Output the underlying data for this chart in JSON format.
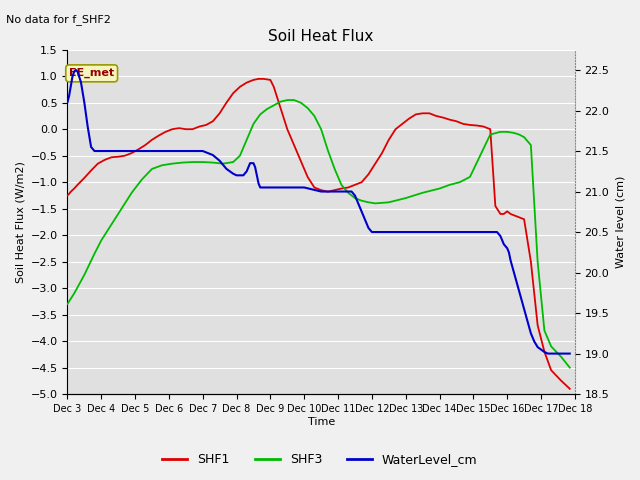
{
  "title": "Soil Heat Flux",
  "note": "No data for f_SHF2",
  "ylabel_left": "Soil Heat Flux (W/m2)",
  "ylabel_right": "Water level (cm)",
  "xlabel": "Time",
  "ylim_left": [
    -5.0,
    1.5
  ],
  "ylim_right": [
    18.5,
    22.75
  ],
  "background_color": "#e0e0e0",
  "grid_color": "#ffffff",
  "ee_met_label": "EE_met",
  "legend_items": [
    "SHF1",
    "SHF3",
    "WaterLevel_cm"
  ],
  "shf1_color": "#dd0000",
  "shf3_color": "#00bb00",
  "water_color": "#0000cc",
  "xtick_labels": [
    "Dec 3",
    "Dec 4",
    "Dec 5",
    "Dec 6",
    "Dec 7",
    "Dec 8",
    "Dec 9",
    "Dec 10",
    "Dec 11",
    "Dec 12",
    "Dec 13",
    "Dec 14",
    "Dec 15",
    "Dec 16",
    "Dec 17",
    "Dec 18"
  ],
  "shf1_x": [
    3.0,
    3.05,
    3.1,
    3.2,
    3.3,
    3.5,
    3.7,
    3.9,
    4.1,
    4.3,
    4.5,
    4.7,
    4.9,
    5.1,
    5.3,
    5.5,
    5.7,
    5.9,
    6.1,
    6.3,
    6.5,
    6.7,
    6.9,
    7.1,
    7.3,
    7.5,
    7.7,
    7.9,
    8.1,
    8.3,
    8.5,
    8.65,
    8.8,
    9.0,
    9.1,
    9.2,
    9.35,
    9.5,
    9.7,
    9.9,
    10.1,
    10.3,
    10.5,
    10.7,
    10.9,
    11.1,
    11.3,
    11.5,
    11.7,
    11.9,
    12.1,
    12.3,
    12.5,
    12.7,
    12.9,
    13.1,
    13.3,
    13.5,
    13.7,
    13.9,
    14.1,
    14.3,
    14.5,
    14.7,
    14.9,
    15.1,
    15.3,
    15.5,
    15.65,
    15.8,
    15.9,
    16.0,
    16.1,
    16.3,
    16.5,
    16.7,
    16.9,
    17.1,
    17.3,
    17.6,
    17.85
  ],
  "shf1_y": [
    -1.25,
    -1.22,
    -1.18,
    -1.12,
    -1.05,
    -0.92,
    -0.78,
    -0.65,
    -0.58,
    -0.53,
    -0.52,
    -0.5,
    -0.45,
    -0.38,
    -0.3,
    -0.2,
    -0.12,
    -0.05,
    0.0,
    0.02,
    0.0,
    0.0,
    0.05,
    0.08,
    0.15,
    0.3,
    0.5,
    0.68,
    0.8,
    0.88,
    0.93,
    0.95,
    0.95,
    0.93,
    0.8,
    0.6,
    0.3,
    0.0,
    -0.3,
    -0.6,
    -0.9,
    -1.1,
    -1.15,
    -1.18,
    -1.15,
    -1.12,
    -1.1,
    -1.05,
    -1.0,
    -0.85,
    -0.65,
    -0.45,
    -0.2,
    0.0,
    0.1,
    0.2,
    0.28,
    0.3,
    0.3,
    0.25,
    0.22,
    0.18,
    0.15,
    0.1,
    0.08,
    0.07,
    0.05,
    0.0,
    -1.45,
    -1.6,
    -1.6,
    -1.55,
    -1.6,
    -1.65,
    -1.7,
    -2.5,
    -3.7,
    -4.2,
    -4.55,
    -4.75,
    -4.9
  ],
  "shf3_x": [
    3.0,
    3.2,
    3.5,
    3.8,
    4.0,
    4.3,
    4.6,
    4.9,
    5.2,
    5.5,
    5.8,
    6.1,
    6.4,
    6.7,
    7.0,
    7.3,
    7.6,
    7.9,
    8.1,
    8.3,
    8.5,
    8.7,
    8.9,
    9.1,
    9.3,
    9.5,
    9.7,
    9.9,
    10.1,
    10.3,
    10.5,
    10.7,
    10.9,
    11.1,
    11.3,
    11.5,
    11.7,
    11.9,
    12.1,
    12.5,
    13.0,
    13.5,
    14.0,
    14.3,
    14.6,
    14.9,
    15.2,
    15.5,
    15.8,
    16.0,
    16.2,
    16.35,
    16.5,
    16.7,
    16.9,
    17.1,
    17.3,
    17.6,
    17.85
  ],
  "shf3_y": [
    -3.3,
    -3.1,
    -2.75,
    -2.35,
    -2.1,
    -1.8,
    -1.5,
    -1.2,
    -0.95,
    -0.75,
    -0.68,
    -0.65,
    -0.63,
    -0.62,
    -0.62,
    -0.63,
    -0.65,
    -0.62,
    -0.5,
    -0.2,
    0.1,
    0.28,
    0.38,
    0.45,
    0.52,
    0.55,
    0.55,
    0.5,
    0.4,
    0.25,
    0.0,
    -0.4,
    -0.75,
    -1.05,
    -1.2,
    -1.3,
    -1.35,
    -1.38,
    -1.4,
    -1.38,
    -1.3,
    -1.2,
    -1.12,
    -1.05,
    -1.0,
    -0.9,
    -0.5,
    -0.1,
    -0.05,
    -0.05,
    -0.07,
    -0.1,
    -0.15,
    -0.3,
    -2.5,
    -3.8,
    -4.1,
    -4.3,
    -4.5
  ],
  "water_x": [
    3.0,
    3.05,
    3.1,
    3.15,
    3.2,
    3.25,
    3.3,
    3.4,
    3.5,
    3.6,
    3.7,
    3.8,
    3.85,
    3.9,
    3.95,
    4.0,
    4.05,
    4.1,
    4.15,
    4.2,
    4.3,
    4.4,
    4.5,
    4.7,
    5.0,
    5.5,
    6.0,
    6.5,
    7.0,
    7.3,
    7.5,
    7.7,
    7.9,
    8.0,
    8.1,
    8.2,
    8.3,
    8.35,
    8.4,
    8.5,
    8.55,
    8.6,
    8.65,
    8.7,
    8.8,
    8.9,
    9.0,
    9.1,
    9.2,
    9.5,
    9.8,
    10.0,
    10.5,
    11.0,
    11.2,
    11.4,
    11.5,
    11.6,
    11.7,
    11.8,
    11.9,
    12.0,
    12.5,
    13.0,
    13.5,
    14.0,
    14.5,
    14.8,
    15.0,
    15.2,
    15.4,
    15.5,
    15.6,
    15.7,
    15.8,
    15.9,
    16.0,
    16.05,
    16.1,
    16.2,
    16.3,
    16.4,
    16.5,
    16.6,
    16.7,
    16.8,
    16.9,
    17.0,
    17.1,
    17.2,
    17.3,
    17.5,
    17.7,
    17.85
  ],
  "water_y": [
    22.1,
    22.18,
    22.3,
    22.42,
    22.48,
    22.5,
    22.48,
    22.35,
    22.1,
    21.8,
    21.55,
    21.5,
    21.5,
    21.5,
    21.5,
    21.5,
    21.5,
    21.5,
    21.5,
    21.5,
    21.5,
    21.5,
    21.5,
    21.5,
    21.5,
    21.5,
    21.5,
    21.5,
    21.5,
    21.45,
    21.38,
    21.28,
    21.22,
    21.2,
    21.2,
    21.2,
    21.25,
    21.3,
    21.35,
    21.35,
    21.3,
    21.2,
    21.1,
    21.05,
    21.05,
    21.05,
    21.05,
    21.05,
    21.05,
    21.05,
    21.05,
    21.05,
    21.0,
    21.0,
    21.0,
    21.0,
    20.95,
    20.85,
    20.75,
    20.65,
    20.55,
    20.5,
    20.5,
    20.5,
    20.5,
    20.5,
    20.5,
    20.5,
    20.5,
    20.5,
    20.5,
    20.5,
    20.5,
    20.5,
    20.45,
    20.35,
    20.3,
    20.25,
    20.15,
    20.0,
    19.85,
    19.7,
    19.55,
    19.4,
    19.25,
    19.15,
    19.08,
    19.05,
    19.02,
    19.0,
    19.0,
    19.0,
    19.0,
    19.0
  ]
}
